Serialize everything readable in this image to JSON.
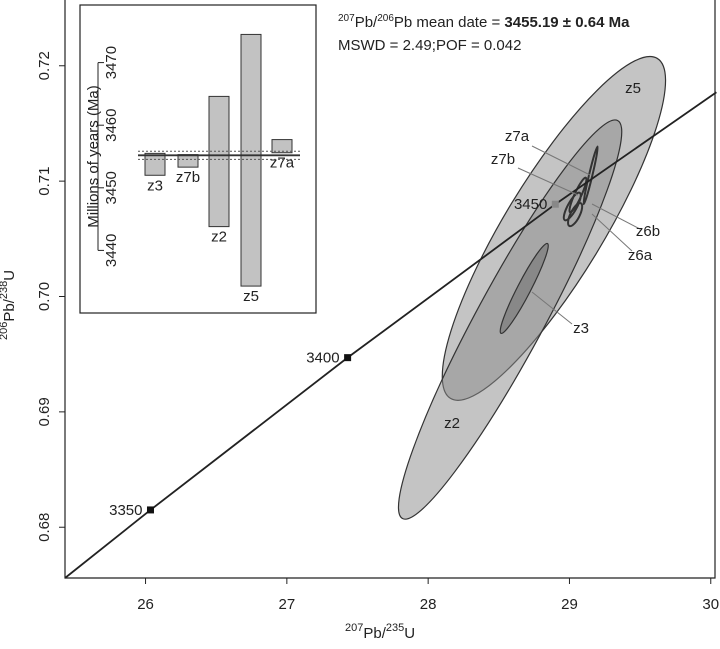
{
  "chart_data": {
    "type": "concordia",
    "annotation": {
      "iso1": "207",
      "el1": "Pb",
      "sep": "/",
      "iso2": "206",
      "el2": "Pb",
      "text": " mean date = ",
      "value_label": "3455.19 ± 0.64 Ma"
    },
    "stats": "MSWD = 2.49;POF = 0.042",
    "x_label": {
      "num_iso": "207",
      "num_el": "Pb",
      "sep": "/",
      "den_iso": "235",
      "den_el": "U"
    },
    "y_label": {
      "num_iso": "206",
      "num_el": "Pb",
      "sep": "/",
      "den_iso": "238",
      "den_el": "U"
    },
    "xlim": [
      25.43,
      30.03
    ],
    "ylim": [
      0.6756,
      0.7257
    ],
    "xticks": [
      26,
      27,
      28,
      29,
      30
    ],
    "yticks": [
      0.68,
      0.69,
      {
        "value": 0.7,
        "label": "0.70"
      },
      0.71,
      0.72
    ],
    "concordia": {
      "x": [
        25.43,
        26.035,
        27.43,
        28.9,
        30.04
      ],
      "y": [
        0.6756,
        0.6815,
        0.6947,
        0.708,
        0.7177
      ],
      "color": "#222"
    },
    "age_markers": [
      {
        "age": 3350,
        "x": 26.035,
        "y": 0.6815,
        "color": "#111"
      },
      {
        "age": 3400,
        "x": 27.43,
        "y": 0.6947,
        "color": "#111"
      },
      {
        "age": 3450,
        "x": 28.9,
        "y": 0.708,
        "color": "#888"
      }
    ],
    "ellipses": [
      {
        "name": "z5",
        "x": 28.89,
        "y": 0.7059,
        "sx": 0.79,
        "sy": 0.0149,
        "rho": 0.86,
        "color": "#8a8a8a"
      },
      {
        "name": "z2",
        "x": 28.58,
        "y": 0.698,
        "sx": 0.79,
        "sy": 0.0173,
        "rho": 0.94,
        "color": "#8a8a8a"
      },
      {
        "name": "z3",
        "x": 28.68,
        "y": 0.7007,
        "sx": 0.17,
        "sy": 0.0039,
        "rho": 0.95,
        "color": "#6a6a6a"
      },
      {
        "name": "z7a",
        "x": 29.15,
        "y": 0.7105,
        "sx": 0.05,
        "sy": 0.0025,
        "rho": 0.97,
        "color": "none"
      },
      {
        "name": "z7b",
        "x": 29.06,
        "y": 0.7088,
        "sx": 0.06,
        "sy": 0.0015,
        "rho": 0.9,
        "color": "none"
      },
      {
        "name": "z6b",
        "x": 29.02,
        "y": 0.7078,
        "sx": 0.06,
        "sy": 0.0012,
        "rho": 0.8,
        "color": "none"
      },
      {
        "name": "z6a",
        "x": 29.04,
        "y": 0.7071,
        "sx": 0.05,
        "sy": 0.001,
        "rho": 0.7,
        "color": "none"
      }
    ],
    "inset": {
      "type": "bar-range",
      "y_label": "Millions of years (Ma)",
      "ylim": [
        3430.0,
        3479.2
      ],
      "yticks": [
        3440,
        3450,
        3460,
        3470
      ],
      "categories": [
        "z3",
        "z7b",
        "z2",
        "z5",
        "z7a"
      ],
      "low": [
        3452.0,
        3453.3,
        3443.8,
        3434.3,
        3455.6
      ],
      "high": [
        3455.5,
        3455.3,
        3464.6,
        3474.5,
        3457.7
      ],
      "mean": 3455.19,
      "error": 0.64,
      "color": "#c2c2c2"
    }
  }
}
